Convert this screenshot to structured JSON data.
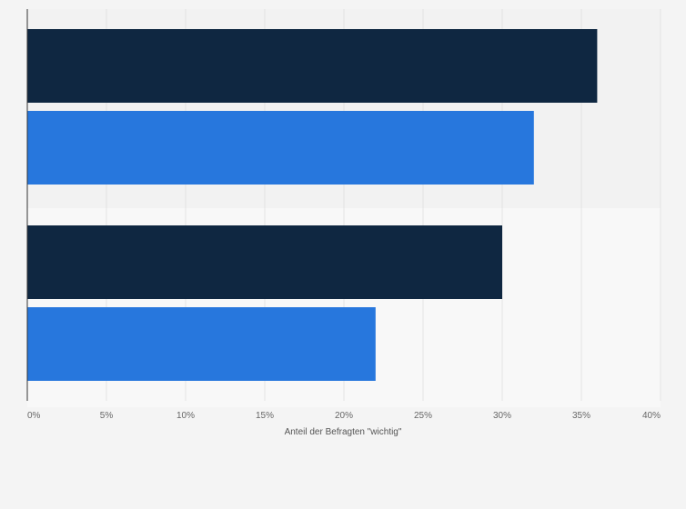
{
  "chart_data": {
    "type": "bar",
    "orientation": "horizontal",
    "categories": [
      "",
      ""
    ],
    "series": [
      {
        "values": [
          36,
          30
        ]
      },
      {
        "values": [
          32,
          22
        ]
      }
    ],
    "colors": [
      "#0f2741",
      "#2777dd"
    ],
    "xlabel": "Anteil der Befragten \"wichtig\"",
    "xlim": [
      0,
      40
    ],
    "x_ticks": [
      "0%",
      "5%",
      "10%",
      "15%",
      "20%",
      "25%",
      "30%",
      "35%",
      "40%"
    ],
    "grid": true,
    "legend": "none"
  }
}
